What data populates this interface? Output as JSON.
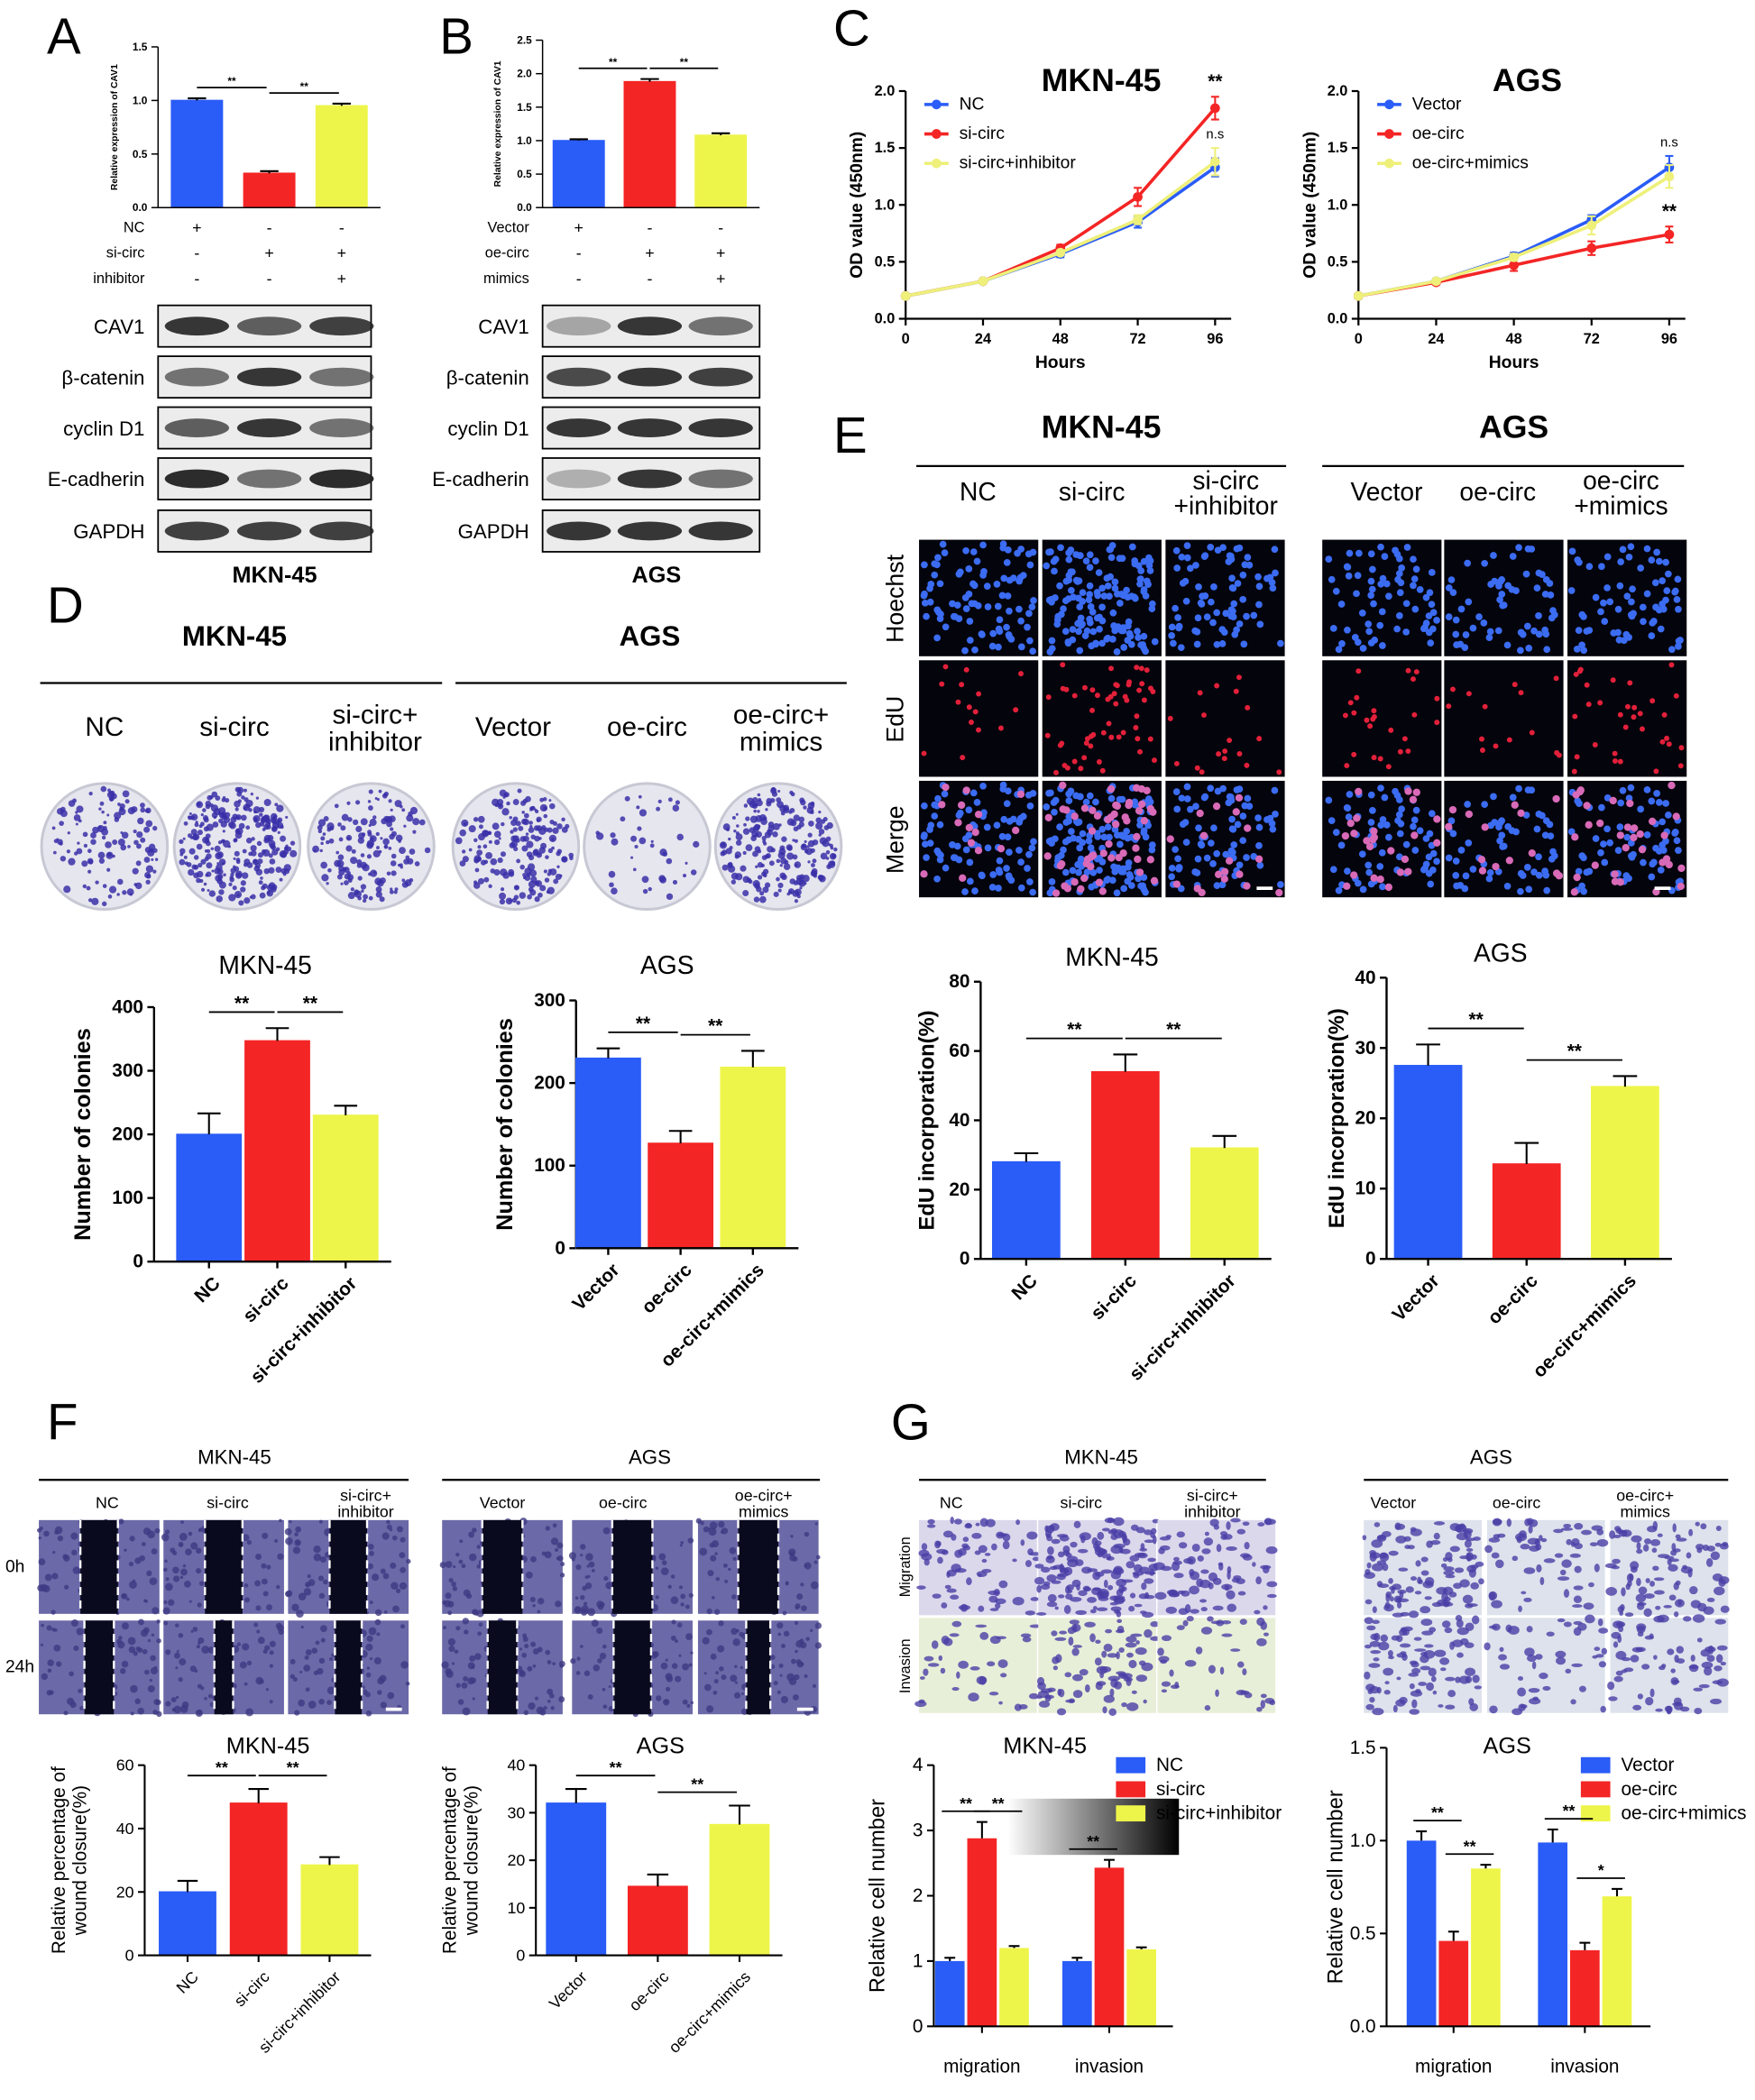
{
  "panels": {
    "A": {
      "letter": "A",
      "conditions": [
        {
          "name": "NC",
          "marks": [
            "+",
            "-",
            "-"
          ]
        },
        {
          "name": "si-circ",
          "marks": [
            "-",
            "+",
            "+"
          ]
        },
        {
          "name": "inhibitor",
          "marks": [
            "-",
            "-",
            "+"
          ]
        }
      ],
      "blots": [
        "CAV1",
        "β-catenin",
        "cyclin D1",
        "E-cadherin",
        "GAPDH"
      ],
      "cell_line": "MKN-45"
    },
    "B": {
      "letter": "B",
      "conditions": [
        {
          "name": "Vector",
          "marks": [
            "+",
            "-",
            "-"
          ]
        },
        {
          "name": "oe-circ",
          "marks": [
            "-",
            "+",
            "+"
          ]
        },
        {
          "name": "mimics",
          "marks": [
            "-",
            "-",
            "+"
          ]
        }
      ],
      "blots": [
        "CAV1",
        "β-catenin",
        "cyclin D1",
        "E-cadherin",
        "GAPDH"
      ],
      "cell_line": "AGS"
    },
    "C": {
      "letter": "C"
    },
    "D": {
      "letter": "D",
      "groups": [
        {
          "title": "MKN-45",
          "labels": [
            [
              "NC"
            ],
            [
              "si-circ"
            ],
            [
              "si-circ+",
              "inhibitor"
            ]
          ]
        },
        {
          "title": "AGS",
          "labels": [
            [
              "Vector"
            ],
            [
              "oe-circ"
            ],
            [
              "oe-circ+",
              "mimics"
            ]
          ]
        }
      ]
    },
    "E": {
      "letter": "E",
      "groups": [
        {
          "title": "MKN-45",
          "labels": [
            [
              "NC"
            ],
            [
              "si-circ"
            ],
            [
              "si-circ",
              "+inhibitor"
            ]
          ]
        },
        {
          "title": "AGS",
          "labels": [
            [
              "Vector"
            ],
            [
              "oe-circ"
            ],
            [
              "oe-circ",
              "+mimics"
            ]
          ]
        }
      ],
      "rows": [
        "Hoechst",
        "EdU",
        "Merge"
      ]
    },
    "F": {
      "letter": "F",
      "groups": [
        {
          "title": "MKN-45",
          "labels": [
            [
              "NC"
            ],
            [
              "si-circ"
            ],
            [
              "si-circ+",
              "inhibitor"
            ]
          ]
        },
        {
          "title": "AGS",
          "labels": [
            [
              "Vector"
            ],
            [
              "oe-circ"
            ],
            [
              "oe-circ+",
              "mimics"
            ]
          ]
        }
      ],
      "rows": [
        "0h",
        "24h"
      ]
    },
    "G": {
      "letter": "G",
      "groups": [
        {
          "title": "MKN-45",
          "labels": [
            [
              "NC"
            ],
            [
              "si-circ"
            ],
            [
              "si-circ+",
              "inhibitor"
            ]
          ]
        },
        {
          "title": "AGS",
          "labels": [
            [
              "Vector"
            ],
            [
              "oe-circ"
            ],
            [
              "oe-circ+",
              "mimics"
            ]
          ]
        }
      ],
      "rows": [
        "Migration",
        "Invasion"
      ]
    }
  },
  "chart_data": [
    {
      "type": "bar",
      "ylabel": "Relative expression of CAV1",
      "values": [
        1.0,
        0.32,
        0.95
      ],
      "errors": [
        0.02,
        0.02,
        0.02
      ],
      "colors": [
        "#2a5cf7",
        "#f42525",
        "#eef54a"
      ],
      "ylim": [
        0,
        1.5
      ],
      "yticks": [
        {
          "value": 0,
          "label": "0.0"
        },
        0.5,
        {
          "value": 1,
          "label": "1.0"
        },
        1.5
      ],
      "significance": [
        {
          "label": "**",
          "between": [
            0,
            1
          ]
        },
        {
          "label": "**",
          "between": [
            1,
            2
          ]
        }
      ]
    },
    {
      "type": "bar",
      "ylabel": "Relative expression of CAV1",
      "values": [
        1.0,
        1.88,
        1.08
      ],
      "errors": [
        0.02,
        0.04,
        0.03
      ],
      "colors": [
        "#2a5cf7",
        "#f42525",
        "#eef54a"
      ],
      "ylim": [
        0,
        2.5
      ],
      "yticks": [
        {
          "value": 0,
          "label": "0.0"
        },
        0.5,
        {
          "value": 1,
          "label": "1.0"
        },
        1.5,
        {
          "value": 2,
          "label": "2.0"
        },
        2.5
      ],
      "significance": [
        {
          "label": "**",
          "between": [
            0,
            1
          ]
        },
        {
          "label": "**",
          "between": [
            1,
            2
          ]
        }
      ]
    },
    {
      "type": "line",
      "title": "MKN-45",
      "xlabel": "Hours",
      "ylabel": "OD value (450nm)",
      "x": [
        0,
        24,
        48,
        72,
        96
      ],
      "xlim": [
        0,
        96
      ],
      "xticks": [
        0,
        24,
        48,
        72,
        96
      ],
      "ylim": [
        0,
        2
      ],
      "yticks": [
        {
          "value": 0,
          "label": "0.0"
        },
        0.5,
        {
          "value": 1,
          "label": "1.0"
        },
        1.5,
        {
          "value": 2,
          "label": "2.0"
        }
      ],
      "series": [
        {
          "name": "NC",
          "color": "#2a5cf7",
          "values": [
            0.2,
            0.33,
            0.57,
            0.85,
            1.33
          ],
          "errors": [
            0.02,
            0.02,
            0.03,
            0.05,
            0.08
          ]
        },
        {
          "name": "si-circ",
          "color": "#f42525",
          "values": [
            0.2,
            0.33,
            0.62,
            1.07,
            1.85
          ],
          "errors": [
            0.02,
            0.02,
            0.03,
            0.08,
            0.1
          ]
        },
        {
          "name": "si-circ+inhibitor",
          "color": "#eef07a",
          "values": [
            0.2,
            0.33,
            0.58,
            0.87,
            1.38
          ],
          "errors": [
            0.02,
            0.02,
            0.02,
            0.04,
            0.12
          ]
        }
      ],
      "annotations": [
        {
          "label": "**",
          "series": 1
        },
        {
          "label": "n.s",
          "series": 2
        }
      ]
    },
    {
      "type": "line",
      "title": "AGS",
      "xlabel": "Hours",
      "ylabel": "OD value (450nm)",
      "x": [
        0,
        24,
        48,
        72,
        96
      ],
      "xlim": [
        0,
        96
      ],
      "xticks": [
        0,
        24,
        48,
        72,
        96
      ],
      "ylim": [
        0,
        2
      ],
      "yticks": [
        {
          "value": 0,
          "label": "0.0"
        },
        0.5,
        {
          "value": 1,
          "label": "1.0"
        },
        1.5,
        {
          "value": 2,
          "label": "2.0"
        }
      ],
      "series": [
        {
          "name": "Vector",
          "color": "#2a5cf7",
          "values": [
            0.2,
            0.33,
            0.55,
            0.87,
            1.33
          ],
          "errors": [
            0.02,
            0.02,
            0.03,
            0.04,
            0.1
          ]
        },
        {
          "name": "oe-circ",
          "color": "#f42525",
          "values": [
            0.2,
            0.32,
            0.47,
            0.62,
            0.74
          ],
          "errors": [
            0.02,
            0.02,
            0.05,
            0.06,
            0.07
          ]
        },
        {
          "name": "oe-circ+mimics",
          "color": "#eef07a",
          "values": [
            0.2,
            0.33,
            0.54,
            0.82,
            1.25
          ],
          "errors": [
            0.02,
            0.02,
            0.03,
            0.08,
            0.1
          ]
        }
      ],
      "annotations": [
        {
          "label": "n.s",
          "series": 0
        },
        {
          "label": "**",
          "series": 1
        }
      ]
    },
    {
      "type": "bar",
      "title": "MKN-45",
      "ylabel": "Number of colonies",
      "categories": [
        "NC",
        "si-circ",
        "si-circ+inhibitor"
      ],
      "values": [
        200,
        347,
        230
      ],
      "errors": [
        33,
        20,
        15
      ],
      "colors": [
        "#2a5cf7",
        "#f42525",
        "#eef54a"
      ],
      "ylim": [
        0,
        400
      ],
      "yticks": [
        0,
        100,
        200,
        300,
        400
      ],
      "significance": [
        {
          "label": "**",
          "between": [
            0,
            1
          ]
        },
        {
          "label": "**",
          "between": [
            1,
            2
          ]
        }
      ]
    },
    {
      "type": "bar",
      "title": "AGS",
      "ylabel": "Number of colonies",
      "categories": [
        "Vector",
        "oe-circ",
        "oe-circ+mimics"
      ],
      "values": [
        230,
        127,
        219
      ],
      "errors": [
        12,
        15,
        20
      ],
      "colors": [
        "#2a5cf7",
        "#f42525",
        "#eef54a"
      ],
      "ylim": [
        0,
        300
      ],
      "yticks": [
        0,
        100,
        200,
        300
      ],
      "significance": [
        {
          "label": "**",
          "between": [
            0,
            1
          ]
        },
        {
          "label": "**",
          "between": [
            1,
            2
          ]
        }
      ]
    },
    {
      "type": "bar",
      "title": "MKN-45",
      "ylabel": "EdU incorporation(%)",
      "categories": [
        "NC",
        "si-circ",
        "si-circ+inhibitor"
      ],
      "values": [
        28,
        54,
        32
      ],
      "errors": [
        2.5,
        5,
        3.5
      ],
      "colors": [
        "#2a5cf7",
        "#f42525",
        "#eef54a"
      ],
      "ylim": [
        0,
        80
      ],
      "yticks": [
        0,
        20,
        40,
        60,
        80
      ],
      "significance": [
        {
          "label": "**",
          "between": [
            0,
            1
          ]
        },
        {
          "label": "**",
          "between": [
            1,
            2
          ]
        }
      ]
    },
    {
      "type": "bar",
      "title": "AGS",
      "ylabel": "EdU incorporation(%)",
      "categories": [
        "Vector",
        "oe-circ",
        "oe-circ+mimics"
      ],
      "values": [
        27.5,
        13.5,
        24.5
      ],
      "errors": [
        3,
        3,
        1.5
      ],
      "colors": [
        "#2a5cf7",
        "#f42525",
        "#eef54a"
      ],
      "ylim": [
        0,
        40
      ],
      "yticks": [
        0,
        10,
        20,
        30,
        40
      ],
      "significance": [
        {
          "label": "**",
          "between": [
            0,
            1
          ]
        },
        {
          "label": "**",
          "between": [
            1,
            2
          ]
        }
      ]
    },
    {
      "type": "bar",
      "title": "MKN-45",
      "ylabel": [
        "Relative percentage of",
        "wound closure(%)"
      ],
      "categories": [
        "NC",
        "si-circ",
        "si-circ+inhibitor"
      ],
      "values": [
        20,
        48,
        28.5
      ],
      "errors": [
        3.5,
        4.5,
        2.5
      ],
      "colors": [
        "#2a5cf7",
        "#f42525",
        "#eef54a"
      ],
      "ylim": [
        0,
        60
      ],
      "yticks": [
        0,
        20,
        40,
        60
      ],
      "significance": [
        {
          "label": "**",
          "between": [
            0,
            1
          ]
        },
        {
          "label": "**",
          "between": [
            1,
            2
          ]
        }
      ]
    },
    {
      "type": "bar",
      "title": "AGS",
      "ylabel": [
        "Relative percentage of",
        "wound closure(%)"
      ],
      "categories": [
        "Vector",
        "oe-circ",
        "oe-circ+mimics"
      ],
      "values": [
        32,
        14.5,
        27.5
      ],
      "errors": [
        3,
        2.5,
        4
      ],
      "colors": [
        "#2a5cf7",
        "#f42525",
        "#eef54a"
      ],
      "ylim": [
        0,
        40
      ],
      "yticks": [
        0,
        10,
        20,
        30,
        40
      ],
      "significance": [
        {
          "label": "**",
          "between": [
            0,
            1
          ]
        },
        {
          "label": "**",
          "between": [
            1,
            2
          ]
        }
      ]
    },
    {
      "type": "grouped_bar",
      "title": "MKN-45",
      "ylabel": "Relative cell number",
      "categories": [
        "migration",
        "invasion"
      ],
      "ylim": [
        0,
        4
      ],
      "yticks": [
        0,
        1,
        2,
        3,
        4
      ],
      "series": [
        {
          "name": "NC",
          "color": "#2a5cf7",
          "values": [
            1.0,
            1.0
          ],
          "errors": [
            0.05,
            0.05
          ]
        },
        {
          "name": "si-circ",
          "color": "#f42525",
          "values": [
            2.88,
            2.43
          ],
          "errors": [
            0.25,
            0.12
          ]
        },
        {
          "name": "si-circ+inhibitor",
          "color": "#eef54a",
          "values": [
            1.2,
            1.18
          ],
          "errors": [
            0.03,
            0.03
          ]
        }
      ],
      "significance": [
        {
          "label": "**",
          "category": 0,
          "between": [
            0,
            1
          ]
        },
        {
          "label": "**",
          "category": 0,
          "between": [
            1,
            2
          ]
        },
        {
          "label": "**",
          "category": 1,
          "between": [
            0,
            1
          ]
        }
      ]
    },
    {
      "type": "grouped_bar",
      "title": "AGS",
      "ylabel": "Relative cell number",
      "categories": [
        "migration",
        "invasion"
      ],
      "ylim": [
        0,
        1.5
      ],
      "yticks": [
        {
          "value": 0,
          "label": "0.0"
        },
        0.5,
        {
          "value": 1,
          "label": "1.0"
        },
        1.5
      ],
      "series": [
        {
          "name": "Vector",
          "color": "#2a5cf7",
          "values": [
            1.0,
            0.99
          ],
          "errors": [
            0.05,
            0.07
          ]
        },
        {
          "name": "oe-circ",
          "color": "#f42525",
          "values": [
            0.46,
            0.41
          ],
          "errors": [
            0.05,
            0.04
          ]
        },
        {
          "name": "oe-circ+mimics",
          "color": "#eef54a",
          "values": [
            0.85,
            0.7
          ],
          "errors": [
            0.02,
            0.04
          ]
        }
      ],
      "significance": [
        {
          "label": "**",
          "category": 0,
          "between": [
            0,
            1
          ]
        },
        {
          "label": "**",
          "category": 0,
          "between": [
            1,
            2
          ]
        },
        {
          "label": "**",
          "category": 1,
          "between": [
            0,
            1
          ]
        },
        {
          "label": "*",
          "category": 1,
          "between": [
            1,
            2
          ]
        }
      ]
    }
  ]
}
